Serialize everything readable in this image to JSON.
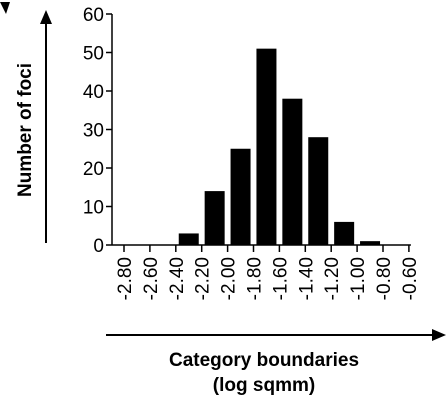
{
  "chart_data": {
    "type": "bar",
    "title": "",
    "xlabel": "Category boundaries",
    "xlabel_line2": "(log sqmm)",
    "ylabel": "Number of foci",
    "ylim": [
      0,
      60
    ],
    "yticks": [
      "0",
      "10",
      "20",
      "30",
      "40",
      "50",
      "60"
    ],
    "xticks": [
      "-2.80",
      "-2.60",
      "-2.40",
      "-2.20",
      "-2.00",
      "-1.80",
      "-1.60",
      "-1.40",
      "-1.20",
      "-1.00",
      "-0.80",
      "-0.60"
    ],
    "categories": [
      "-2.70",
      "-2.50",
      "-2.30",
      "-2.10",
      "-1.90",
      "-1.70",
      "-1.50",
      "-1.30",
      "-1.10",
      "-0.90",
      "-0.70"
    ],
    "values": [
      0,
      0,
      3,
      14,
      25,
      51,
      38,
      28,
      6,
      1,
      0
    ],
    "bar_color": "#000000",
    "grid": false
  }
}
